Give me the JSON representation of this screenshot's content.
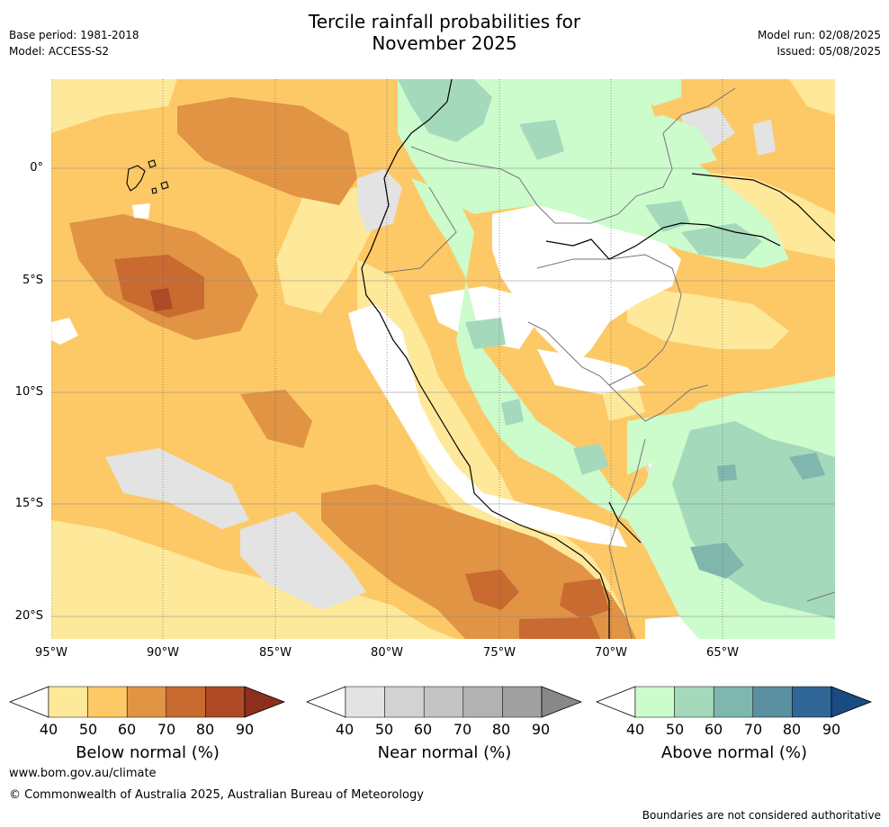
{
  "title_line1": "Tercile rainfall probabilities for",
  "title_line2": "November 2025",
  "base_period": "Base period: 1981-2018",
  "model": "Model: ACCESS-S2",
  "model_run": "Model run: 02/08/2025",
  "issued": "Issued: 05/08/2025",
  "lat_labels": [
    "0°",
    "5°S",
    "10°S",
    "15°S",
    "20°S"
  ],
  "lon_labels": [
    "95°W",
    "90°W",
    "85°W",
    "80°W",
    "75°W",
    "70°W",
    "65°W"
  ],
  "legends": [
    {
      "label": "Below normal (%)",
      "ticks": [
        "40",
        "50",
        "60",
        "70",
        "80",
        "90"
      ],
      "colors": [
        "#ffffff",
        "#fee89a",
        "#fdc966",
        "#e09444",
        "#c96a31",
        "#ae4a25",
        "#8c2f1d"
      ]
    },
    {
      "label": "Near normal (%)",
      "ticks": [
        "40",
        "50",
        "60",
        "70",
        "80",
        "90"
      ],
      "colors": [
        "#ffffff",
        "#e3e3e3",
        "#d2d2d2",
        "#c4c4c4",
        "#b2b2b2",
        "#a0a0a0",
        "#888888"
      ]
    },
    {
      "label": "Above normal (%)",
      "ticks": [
        "40",
        "50",
        "60",
        "70",
        "80",
        "90"
      ],
      "colors": [
        "#ffffff",
        "#ccfbcc",
        "#a5d9bb",
        "#7fb6ae",
        "#5a90a0",
        "#2f6696",
        "#1a4b82"
      ]
    }
  ],
  "website": "www.bom.gov.au/climate",
  "copyright": "© Commonwealth of Australia 2025, Australian Bureau of Meteorology",
  "disclaimer": "Boundaries are not considered authoritative"
}
